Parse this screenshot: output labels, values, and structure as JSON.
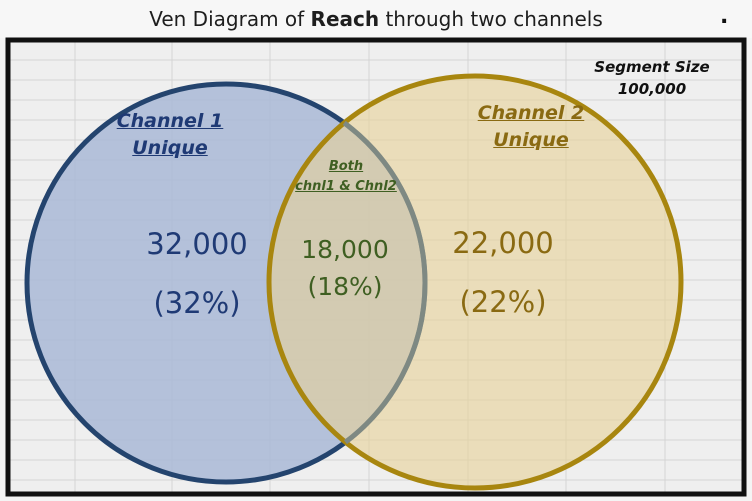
{
  "title": {
    "prefix": "Ven Diagram of ",
    "bold": "Reach",
    "suffix": " through two channels"
  },
  "corner_mark": ".",
  "segment": {
    "label": "Segment Size",
    "value": "100,000"
  },
  "channel1": {
    "heading_line1": "Channel 1",
    "heading_line2": "Unique",
    "count": "32,000",
    "percent": "(32%)",
    "color": "#1f3a75",
    "fill": "#a9b9d6"
  },
  "channel2": {
    "heading_line1": "Channel 2",
    "heading_line2": "Unique",
    "count": "22,000",
    "percent": "(22%)",
    "color": "#8a6a12",
    "fill": "#e6d29a"
  },
  "both": {
    "heading_line1": "Both",
    "heading_line2": "chnl1 & Chnl2",
    "count": "18,000",
    "percent": "(18%)",
    "color": "#3f5f22"
  }
}
